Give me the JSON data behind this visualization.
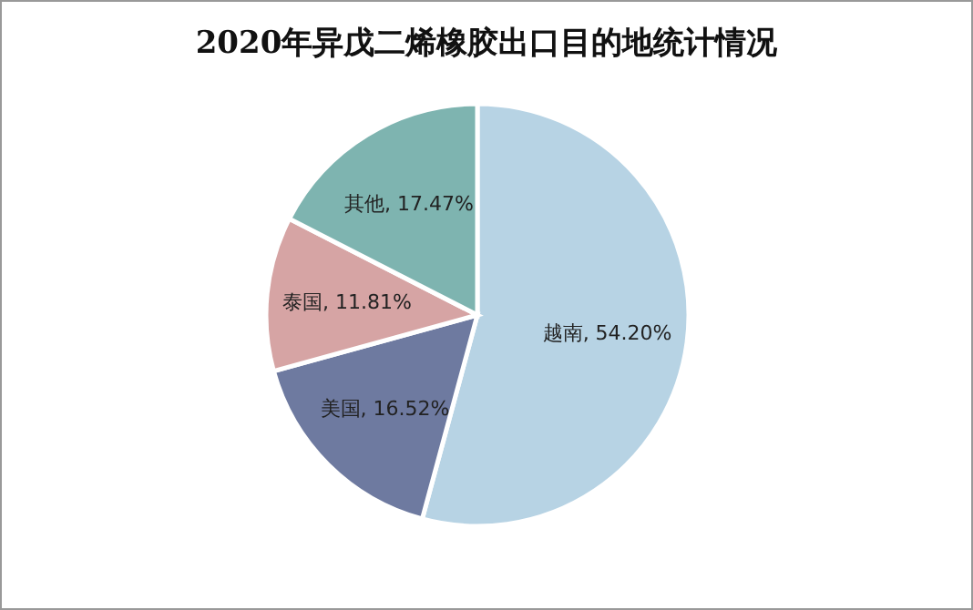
{
  "chart_data": {
    "type": "pie",
    "title": "2020年异戊二烯橡胶出口目的地统计情况",
    "categories": [
      "越南",
      "美国",
      "泰国",
      "其他"
    ],
    "values": [
      54.2,
      16.52,
      11.81,
      17.47
    ],
    "colors": [
      "#b7d3e4",
      "#6e7aa0",
      "#d6a4a4",
      "#7eb4b0"
    ],
    "value_labels": [
      ", 54.20%",
      ", 16.52%",
      ", 11.81%",
      ", 17.47%"
    ]
  }
}
